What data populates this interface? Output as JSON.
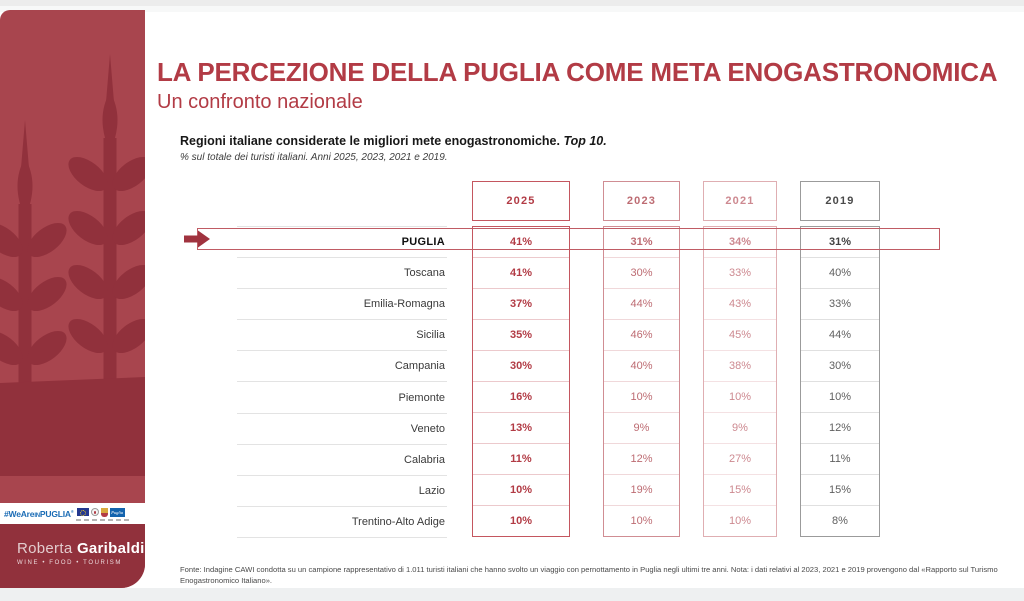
{
  "page": {
    "title": "LA PERCEZIONE DELLA PUGLIA COME META ENOGASTRONOMICA",
    "subtitle": "Un confronto nazionale",
    "table_heading_bold": "Regioni italiane considerate le migliori mete enogastronomiche.",
    "table_heading_italic": "Top 10.",
    "table_note": "% sul totale dei turisti italiani. Anni 2025, 2023, 2021 e 2019.",
    "footnote": "Fonte: Indagine CAWI condotta su un campione rappresentativo di 1.011 turisti italiani che hanno svolto un viaggio con pernottamento in Puglia negli ultimi tre anni. Nota: i dati relativi al 2023, 2021 e 2019 provengono dal «Rapporto sul Turismo Enogastronomico Italiano»."
  },
  "sidebar": {
    "hashtag_prefix": "#WeAre",
    "hashtag_mid": "IN",
    "hashtag_suffix": "PUGLIA",
    "hashtag_reg": "®",
    "puglia_logo_text": "Puglia",
    "brand_first": "Roberta",
    "brand_last": "Garibaldi",
    "brand_tagline": "WINE • FOOD • TOURISM"
  },
  "colors": {
    "accent_red": "#b23b45",
    "sidebar_bg": "#a8454e",
    "sidebar_dark": "#91313c",
    "col_2025": "#b23b45",
    "col_2023": "#bd6b72",
    "col_2021": "#cd8990",
    "col_2019": "#5f5f5f"
  },
  "chart_data": {
    "type": "table",
    "title": "Regioni italiane considerate le migliori mete enogastronomiche. Top 10.",
    "subtitle": "% sul totale dei turisti italiani. Anni 2025, 2023, 2021 e 2019.",
    "columns": [
      "2025",
      "2023",
      "2021",
      "2019"
    ],
    "rows": [
      {
        "region": "PUGLIA",
        "values": [
          "41%",
          "31%",
          "34%",
          "31%"
        ],
        "highlight": true
      },
      {
        "region": "Toscana",
        "values": [
          "41%",
          "30%",
          "33%",
          "40%"
        ],
        "highlight": false
      },
      {
        "region": "Emilia-Romagna",
        "values": [
          "37%",
          "44%",
          "43%",
          "33%"
        ],
        "highlight": false
      },
      {
        "region": "Sicilia",
        "values": [
          "35%",
          "46%",
          "45%",
          "44%"
        ],
        "highlight": false
      },
      {
        "region": "Campania",
        "values": [
          "30%",
          "40%",
          "38%",
          "30%"
        ],
        "highlight": false
      },
      {
        "region": "Piemonte",
        "values": [
          "16%",
          "10%",
          "10%",
          "10%"
        ],
        "highlight": false
      },
      {
        "region": "Veneto",
        "values": [
          "13%",
          "9%",
          "9%",
          "12%"
        ],
        "highlight": false
      },
      {
        "region": "Calabria",
        "values": [
          "11%",
          "12%",
          "27%",
          "11%"
        ],
        "highlight": false
      },
      {
        "region": "Lazio",
        "values": [
          "10%",
          "19%",
          "15%",
          "15%"
        ],
        "highlight": false
      },
      {
        "region": "Trentino-Alto Adige",
        "values": [
          "10%",
          "10%",
          "10%",
          "8%"
        ],
        "highlight": false
      }
    ]
  }
}
